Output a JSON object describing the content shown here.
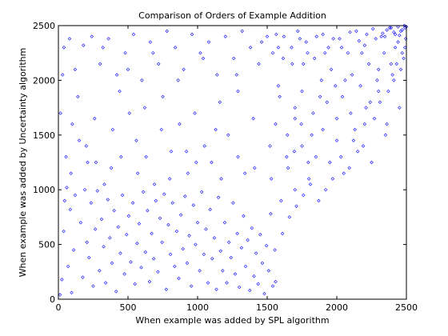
{
  "chart_data": {
    "type": "scatter",
    "title": "Comparison of Orders of Example Addition",
    "xlabel": "When example was added by SPL algorithm",
    "ylabel": "When example was added by Uncertainty algorithm",
    "xlim": [
      0,
      2500
    ],
    "ylim": [
      0,
      2500
    ],
    "xticks": [
      0,
      500,
      1000,
      1500,
      2000,
      2500
    ],
    "yticks": [
      0,
      500,
      1000,
      1500,
      2000,
      2500
    ],
    "xtick_labels": [
      "0",
      "500",
      "1000",
      "1500",
      "2000",
      "2500"
    ],
    "ytick_labels": [
      "0",
      "500",
      "1000",
      "1500",
      "2000",
      "2500"
    ],
    "grid": false,
    "marker": "diamond",
    "marker_color": "#0000ff",
    "series": [
      {
        "points": [
          [
            12,
            40
          ],
          [
            25,
            180
          ],
          [
            38,
            620
          ],
          [
            45,
            900
          ],
          [
            60,
            1020
          ],
          [
            70,
            300
          ],
          [
            85,
            820
          ],
          [
            95,
            60
          ],
          [
            110,
            450
          ],
          [
            120,
            950
          ],
          [
            15,
            1700
          ],
          [
            30,
            2050
          ],
          [
            55,
            1300
          ],
          [
            80,
            2380
          ],
          [
            100,
            1600
          ],
          [
            140,
            1850
          ],
          [
            160,
            700
          ],
          [
            175,
            200
          ],
          [
            190,
            1000
          ],
          [
            205,
            520
          ],
          [
            220,
            380
          ],
          [
            235,
            880
          ],
          [
            250,
            120
          ],
          [
            265,
            640
          ],
          [
            280,
            990
          ],
          [
            295,
            260
          ],
          [
            310,
            730
          ],
          [
            325,
            480
          ],
          [
            340,
            150
          ],
          [
            355,
            910
          ],
          [
            370,
            560
          ],
          [
            385,
            330
          ],
          [
            400,
            810
          ],
          [
            415,
            70
          ],
          [
            430,
            660
          ],
          [
            445,
            420
          ],
          [
            460,
            950
          ],
          [
            475,
            230
          ],
          [
            490,
            590
          ],
          [
            505,
            760
          ],
          [
            520,
            340
          ],
          [
            535,
            880
          ],
          [
            550,
            140
          ],
          [
            565,
            510
          ],
          [
            580,
            690
          ],
          [
            595,
            290
          ],
          [
            610,
            980
          ],
          [
            625,
            430
          ],
          [
            640,
            810
          ],
          [
            655,
            160
          ],
          [
            670,
            600
          ],
          [
            685,
            370
          ],
          [
            700,
            900
          ],
          [
            715,
            250
          ],
          [
            730,
            740
          ],
          [
            745,
            520
          ],
          [
            760,
            960
          ],
          [
            775,
            90
          ],
          [
            790,
            680
          ],
          [
            805,
            410
          ],
          [
            820,
            880
          ],
          [
            835,
            300
          ],
          [
            850,
            620
          ],
          [
            865,
            190
          ],
          [
            880,
            770
          ],
          [
            895,
            460
          ],
          [
            910,
            940
          ],
          [
            925,
            330
          ],
          [
            940,
            580
          ],
          [
            955,
            120
          ],
          [
            970,
            860
          ],
          [
            985,
            500
          ],
          [
            1000,
            700
          ],
          [
            1015,
            260
          ],
          [
            1030,
            980
          ],
          [
            1045,
            410
          ],
          [
            1060,
            640
          ],
          [
            1075,
            150
          ],
          [
            1090,
            820
          ],
          [
            1105,
            370
          ],
          [
            1120,
            560
          ],
          [
            1135,
            90
          ],
          [
            1150,
            930
          ],
          [
            1165,
            440
          ],
          [
            1180,
            260
          ],
          [
            1195,
            700
          ],
          [
            1210,
            150
          ],
          [
            1225,
            520
          ],
          [
            1240,
            380
          ],
          [
            1255,
            880
          ],
          [
            1270,
            230
          ],
          [
            1285,
            600
          ],
          [
            1300,
            110
          ],
          [
            1315,
            470
          ],
          [
            1330,
            760
          ],
          [
            1345,
            300
          ],
          [
            1360,
            540
          ],
          [
            1375,
            80
          ],
          [
            1390,
            650
          ],
          [
            1405,
            210
          ],
          [
            1420,
            420
          ],
          [
            1435,
            140
          ],
          [
            1450,
            590
          ],
          [
            1465,
            330
          ],
          [
            1480,
            50
          ],
          [
            1495,
            490
          ],
          [
            1510,
            260
          ],
          [
            1525,
            780
          ],
          [
            1540,
            120
          ],
          [
            1555,
            450
          ],
          [
            200,
            1400
          ],
          [
            260,
            1650
          ],
          [
            320,
            2300
          ],
          [
            380,
            1200
          ],
          [
            440,
            1900
          ],
          [
            500,
            2100
          ],
          [
            560,
            1450
          ],
          [
            620,
            1750
          ],
          [
            680,
            2250
          ],
          [
            740,
            1550
          ],
          [
            800,
            1100
          ],
          [
            860,
            2000
          ],
          [
            920,
            1350
          ],
          [
            980,
            1700
          ],
          [
            1040,
            2200
          ],
          [
            1100,
            1250
          ],
          [
            1160,
            1800
          ],
          [
            1220,
            1500
          ],
          [
            1280,
            2050
          ],
          [
            1340,
            1150
          ],
          [
            1400,
            1650
          ],
          [
            1460,
            2350
          ],
          [
            1520,
            1400
          ],
          [
            1580,
            1950
          ],
          [
            1640,
            1300
          ],
          [
            1700,
            1750
          ],
          [
            1760,
            2150
          ],
          [
            1820,
            1500
          ],
          [
            1880,
            1850
          ],
          [
            1940,
            2300
          ],
          [
            2000,
            1650
          ],
          [
            2060,
            2000
          ],
          [
            2120,
            1450
          ],
          [
            2180,
            2250
          ],
          [
            2240,
            1800
          ],
          [
            2300,
            2100
          ],
          [
            2360,
            1600
          ],
          [
            2420,
            2300
          ],
          [
            2460,
            2450
          ],
          [
            2490,
            2480
          ],
          [
            1600,
            900
          ],
          [
            1650,
            1200
          ],
          [
            1700,
            1000
          ],
          [
            1750,
            1400
          ],
          [
            1800,
            1100
          ],
          [
            1850,
            1300
          ],
          [
            1900,
            1550
          ],
          [
            1950,
            1250
          ],
          [
            2000,
            1450
          ],
          [
            2050,
            1150
          ],
          [
            2100,
            1700
          ],
          [
            2150,
            1350
          ],
          [
            2200,
            1600
          ],
          [
            2250,
            1250
          ],
          [
            2300,
            1900
          ],
          [
            2350,
            1500
          ],
          [
            2400,
            2050
          ],
          [
            2450,
            1750
          ],
          [
            2480,
            2200
          ],
          [
            2495,
            2380
          ],
          [
            1580,
            2300
          ],
          [
            1620,
            2400
          ],
          [
            1680,
            2150
          ],
          [
            1720,
            2450
          ],
          [
            1780,
            2350
          ],
          [
            1840,
            2200
          ],
          [
            1900,
            2420
          ],
          [
            1960,
            2100
          ],
          [
            2020,
            2380
          ],
          [
            2080,
            2250
          ],
          [
            2140,
            2450
          ],
          [
            2200,
            2320
          ],
          [
            2260,
            2470
          ],
          [
            2320,
            2400
          ],
          [
            2380,
            2480
          ],
          [
            2420,
            2420
          ],
          [
            2440,
            2490
          ],
          [
            2470,
            2460
          ],
          [
            2485,
            2500
          ],
          [
            2500,
            2490
          ],
          [
            1560,
            160
          ],
          [
            1700,
            1650
          ],
          [
            1750,
            1900
          ],
          [
            1830,
            1700
          ],
          [
            1890,
            2000
          ],
          [
            1930,
            1800
          ],
          [
            1990,
            1950
          ],
          [
            2040,
            1850
          ],
          [
            2110,
            2050
          ],
          [
            2170,
            1950
          ],
          [
            2230,
            2150
          ],
          [
            2290,
            2000
          ],
          [
            2340,
            2250
          ],
          [
            2390,
            2150
          ],
          [
            2440,
            2350
          ],
          [
            2470,
            2250
          ],
          [
            2330,
            2430
          ],
          [
            2360,
            2460
          ],
          [
            2410,
            2440
          ],
          [
            2450,
            2410
          ],
          [
            40,
            2300
          ],
          [
            120,
            2100
          ],
          [
            180,
            2320
          ],
          [
            240,
            2400
          ],
          [
            300,
            2150
          ],
          [
            360,
            2380
          ],
          [
            420,
            2050
          ],
          [
            480,
            2250
          ],
          [
            540,
            2420
          ],
          [
            600,
            2000
          ],
          [
            660,
            2350
          ],
          [
            720,
            2150
          ],
          [
            780,
            2450
          ],
          [
            840,
            2300
          ],
          [
            900,
            2100
          ],
          [
            960,
            2420
          ],
          [
            1020,
            2250
          ],
          [
            1080,
            2350
          ],
          [
            1140,
            2050
          ],
          [
            1200,
            2400
          ],
          [
            1260,
            2200
          ],
          [
            1320,
            2450
          ],
          [
            1380,
            2300
          ],
          [
            1440,
            2150
          ],
          [
            1500,
            2400
          ],
          [
            1540,
            2250
          ],
          [
            1290,
            1900
          ],
          [
            1130,
            1550
          ],
          [
            990,
            1250
          ],
          [
            870,
            1600
          ],
          [
            750,
            1850
          ],
          [
            630,
            1300
          ],
          [
            510,
            1700
          ],
          [
            390,
            1550
          ],
          [
            270,
            1250
          ],
          [
            150,
            1450
          ],
          [
            90,
            1150
          ],
          [
            210,
            1250
          ],
          [
            330,
            1050
          ],
          [
            450,
            1300
          ],
          [
            570,
            1150
          ],
          [
            690,
            1050
          ],
          [
            810,
            1350
          ],
          [
            930,
            1150
          ],
          [
            1050,
            1400
          ],
          [
            1170,
            1100
          ],
          [
            1290,
            1300
          ],
          [
            1410,
            1200
          ],
          [
            1530,
            1100
          ],
          [
            1560,
            1600
          ],
          [
            1610,
            600
          ],
          [
            1660,
            750
          ],
          [
            1710,
            850
          ],
          [
            1760,
            950
          ],
          [
            1810,
            1050
          ],
          [
            1870,
            900
          ],
          [
            1920,
            1000
          ],
          [
            1970,
            1100
          ],
          [
            2030,
            1300
          ],
          [
            2090,
            1200
          ],
          [
            2130,
            1550
          ],
          [
            2190,
            1400
          ],
          [
            2210,
            1750
          ],
          [
            2270,
            1650
          ],
          [
            2310,
            1800
          ],
          [
            2370,
            1900
          ],
          [
            2410,
            2000
          ],
          [
            2430,
            2150
          ],
          [
            2460,
            2100
          ],
          [
            2490,
            2300
          ],
          [
            2390,
            2480
          ],
          [
            2345,
            2400
          ],
          [
            2280,
            2380
          ],
          [
            2215,
            2420
          ],
          [
            2160,
            2360
          ],
          [
            2095,
            2440
          ],
          [
            2035,
            2300
          ],
          [
            1975,
            2380
          ],
          [
            1915,
            2250
          ],
          [
            1855,
            2400
          ],
          [
            1790,
            2250
          ],
          [
            1735,
            2380
          ],
          [
            1675,
            2300
          ],
          [
            1615,
            2200
          ],
          [
            1565,
            2420
          ],
          [
            1590,
            1850
          ],
          [
            1645,
            1500
          ],
          [
            1695,
            1350
          ],
          [
            1745,
            1600
          ],
          [
            1795,
            1250
          ]
        ]
      }
    ]
  }
}
